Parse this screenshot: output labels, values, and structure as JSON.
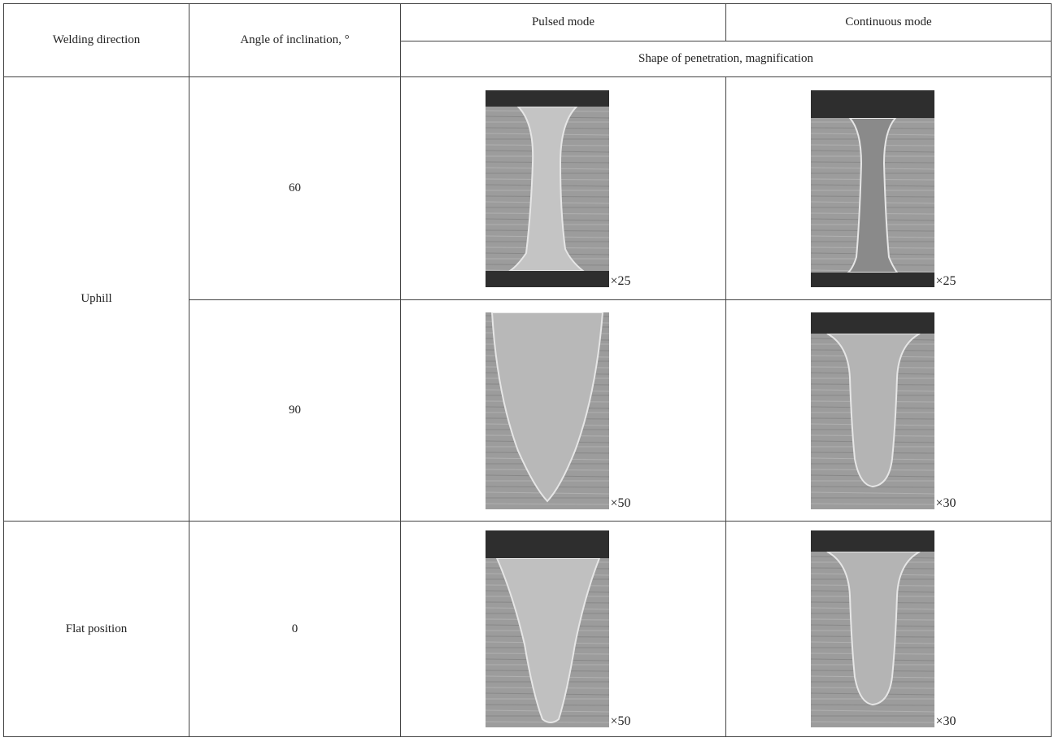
{
  "table": {
    "header": {
      "welding_direction": "Welding direction",
      "angle": "Angle of inclination, °",
      "pulsed": "Pulsed mode",
      "continuous": "Continuous mode",
      "shape": "Shape of penetration, magnification"
    },
    "groups": [
      {
        "direction": "Uphill",
        "rows": [
          {
            "angle": 60,
            "pulsed": "×25",
            "continuous": "×25"
          },
          {
            "angle": 90,
            "pulsed": "×50",
            "continuous": "×30"
          }
        ]
      },
      {
        "direction": "Flat position",
        "rows": [
          {
            "angle": 0,
            "pulsed": "×50",
            "continuous": "×30"
          }
        ]
      }
    ]
  }
}
